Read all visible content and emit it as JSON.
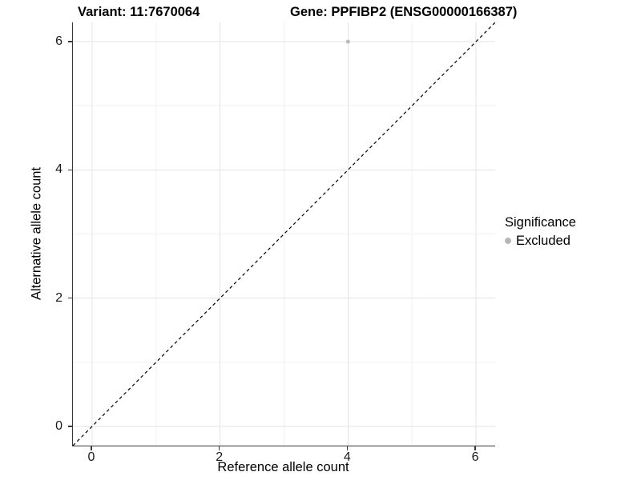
{
  "header": {
    "title_variant": "Variant: 11:7670064",
    "title_gene": "Gene: PPFIBP2 (ENSG00000166387)"
  },
  "legend": {
    "title": "Significance",
    "items": [
      {
        "label": "Excluded",
        "color": "#b7b7b7"
      }
    ]
  },
  "chart_data": {
    "type": "scatter",
    "title_left": "Variant: 11:7670064",
    "title_right": "Gene: PPFIBP2 (ENSG00000166387)",
    "xlabel": "Reference allele count",
    "ylabel": "Alternative allele count",
    "xlim": [
      -0.3,
      6.3
    ],
    "ylim": [
      -0.3,
      6.3
    ],
    "xticks": [
      0,
      2,
      4,
      6
    ],
    "yticks": [
      0,
      2,
      4,
      6
    ],
    "xticks_minor": [
      1,
      3,
      5
    ],
    "yticks_minor": [
      1,
      3,
      5
    ],
    "grid": "major-and-minor",
    "legend_position": "right",
    "series": [
      {
        "name": "Excluded",
        "color": "#bdbdbd",
        "marker": "circle",
        "points": [
          {
            "x": 4,
            "y": 6
          }
        ]
      }
    ],
    "reference_line": {
      "type": "identity",
      "slope": 1,
      "intercept": 0,
      "style": "dashed",
      "color": "#000000"
    },
    "colors": {
      "grid_major": "#e3e3e3",
      "grid_minor": "#f0f0f0",
      "axis_line": "#383838",
      "tick_text": "#1a1a1a"
    }
  }
}
